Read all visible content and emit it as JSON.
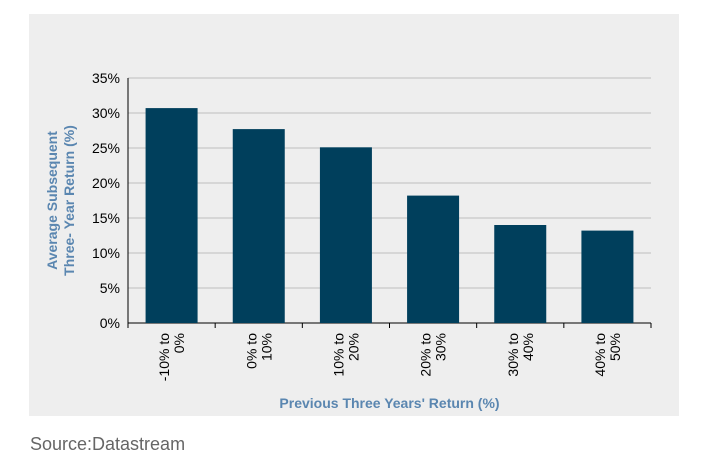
{
  "source_note": "Source:Datastream",
  "chart_data": {
    "type": "bar",
    "categories": [
      "-10% to 0%",
      "0% to 10%",
      "10% to 20%",
      "20% to 30%",
      "30% to 40%",
      "40% to 50%"
    ],
    "category_lines": [
      [
        "-10% to",
        "0%"
      ],
      [
        "0% to",
        "10%"
      ],
      [
        "10% to",
        "20%"
      ],
      [
        "20% to",
        "30%"
      ],
      [
        "30% to",
        "40%"
      ],
      [
        "40% to",
        "50%"
      ]
    ],
    "values": [
      30.7,
      27.7,
      25.1,
      18.2,
      14.0,
      13.2
    ],
    "xlabel": "Previous Three Years' Return (%)",
    "ylabel_lines": [
      "Average Subsequent",
      "Three- Year Return (%)"
    ],
    "yticks": [
      "0%",
      "5%",
      "10%",
      "15%",
      "20%",
      "25%",
      "30%",
      "35%"
    ],
    "ylim": [
      0,
      35
    ],
    "grid": true,
    "colors": {
      "bar": "#003f5c",
      "label": "#5a86b0",
      "panel": "#eeeeee",
      "grid": "#bfbfbf"
    }
  }
}
